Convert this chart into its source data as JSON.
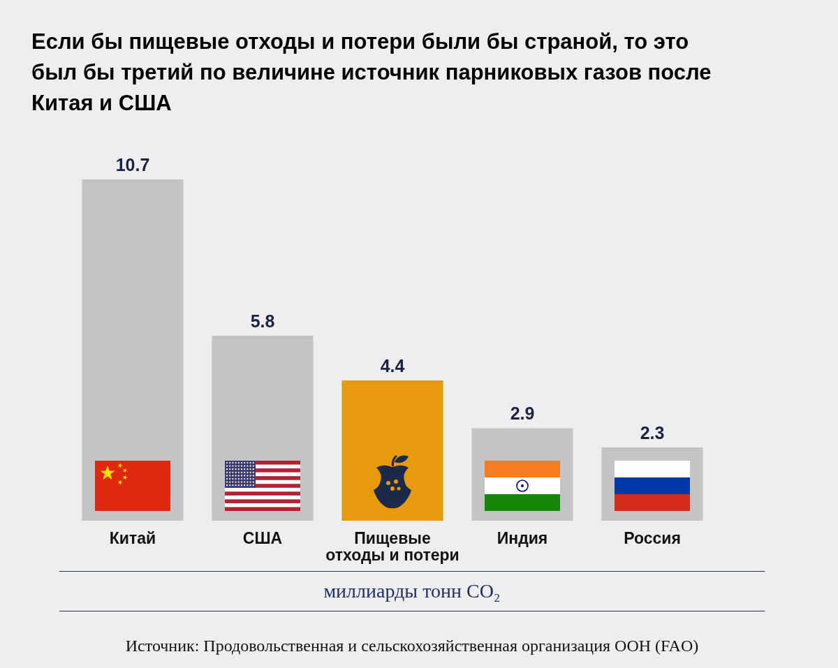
{
  "chart_data": {
    "type": "bar",
    "title": "Если бы пищевые отходы и потери были бы страной, то это был бы третий по величине источник парниковых газов после Китая и США",
    "categories": [
      "Китай",
      "США",
      "Пищевые отходы и потери",
      "Индия",
      "Россия"
    ],
    "values": [
      10.7,
      5.8,
      4.4,
      2.9,
      2.3
    ],
    "colors": [
      "#c4c4c6",
      "#c4c4c6",
      "#e69a0c",
      "#c4c4c6",
      "#c4c4c6"
    ],
    "data_labels": true,
    "xlabel": "миллиарды тонн CO₂",
    "annotations": [
      "Источник: Продовольственная и сельскохозяйственная организация ООН (FAO)"
    ]
  }
}
